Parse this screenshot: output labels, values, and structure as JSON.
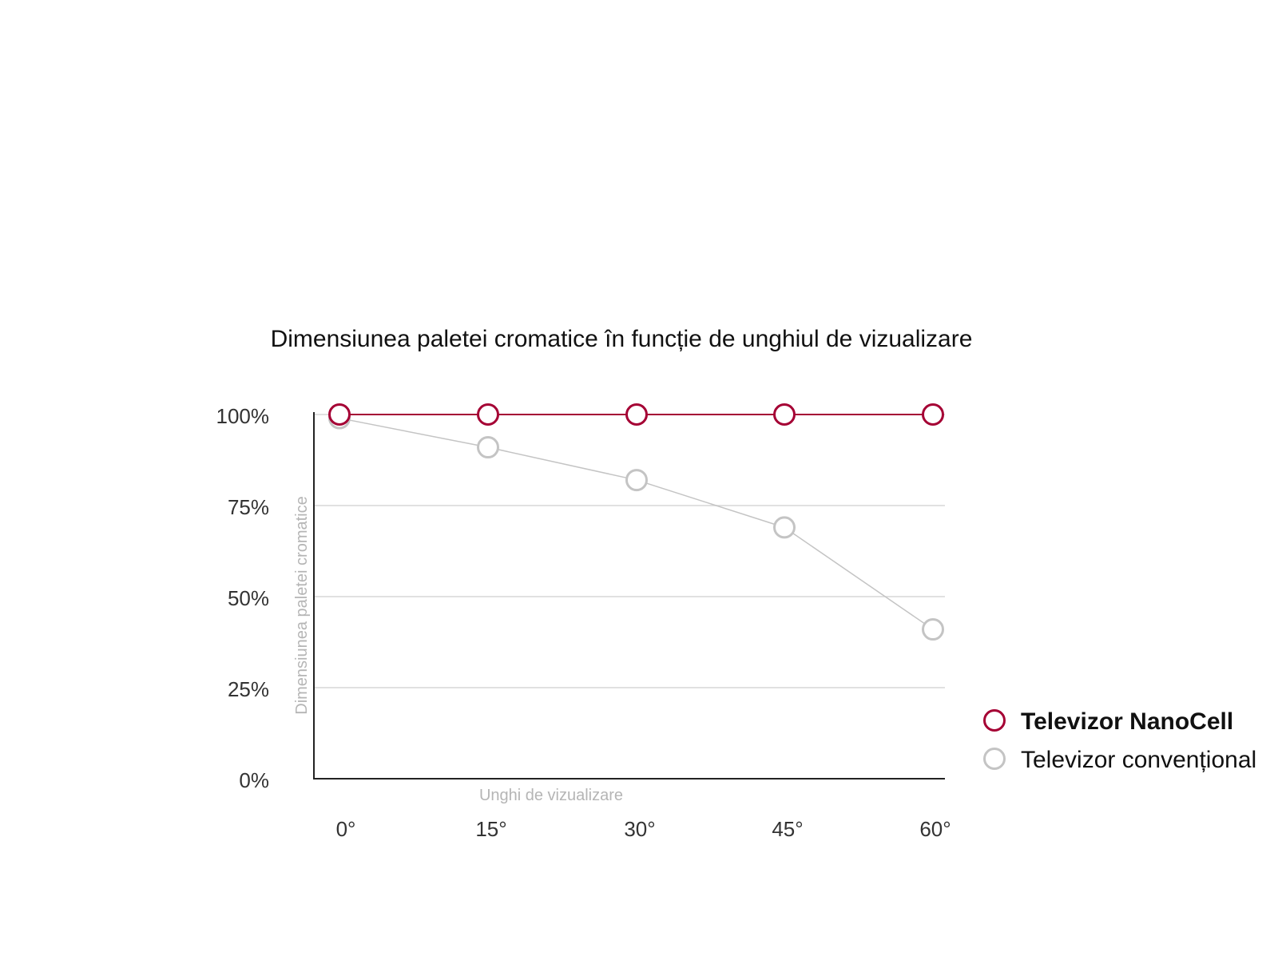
{
  "chart_data": {
    "type": "line",
    "title": "Dimensiunea paletei cromatice în funcție de unghiul de vizualizare",
    "xlabel": "Unghi de vizualizare",
    "ylabel": "Dimensiunea paletei cromatice",
    "categories": [
      "0°",
      "15°",
      "30°",
      "45°",
      "60°"
    ],
    "yticks": [
      "0%",
      "25%",
      "50%",
      "75%",
      "100%"
    ],
    "ylim": [
      0,
      100
    ],
    "grid": "horizontal",
    "legend_position": "right",
    "series": [
      {
        "name": "Televizor NanoCell",
        "values": [
          100,
          100,
          100,
          100,
          100
        ],
        "color": "#a50034"
      },
      {
        "name": "Televizor convențional",
        "values": [
          99,
          91,
          82,
          69,
          41
        ],
        "color": "#c4c4c4"
      }
    ]
  }
}
